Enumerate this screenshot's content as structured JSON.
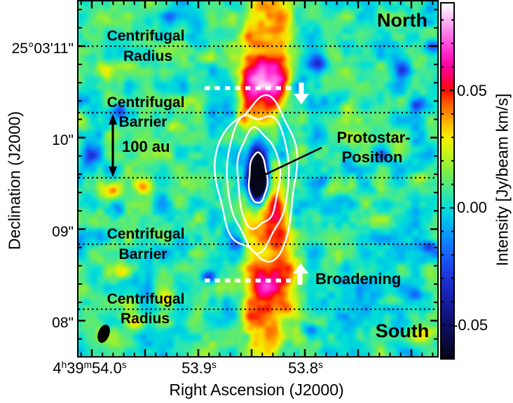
{
  "plot": {
    "north_label": "North",
    "south_label": "South",
    "annotations": {
      "cr_top": {
        "line1": "Centrifugal",
        "line2": "Radius"
      },
      "cb_top": {
        "line1": "Centrifugal",
        "line2": "Barrier"
      },
      "scale_label": "100 au",
      "protostar": {
        "line1": "Protostar-",
        "line2": "Position"
      },
      "cb_bottom": {
        "line1": "Centrifugal",
        "line2": "Barrier"
      },
      "cr_bottom": {
        "line1": "Centrifugal",
        "line2": "Radius"
      },
      "broadening": "Broadening"
    }
  },
  "axes": {
    "x_label": "Right Ascension (J2000)",
    "y_label": "Declination (J2000)",
    "y_tick_labels": [
      "25°03'11\"",
      "10\"",
      "09\"",
      "08\""
    ],
    "x_tick_segments": [
      [
        {
          "t": "4"
        },
        {
          "t": "h",
          "sup": true
        },
        {
          "t": "39"
        },
        {
          "t": "m",
          "sup": true
        },
        {
          "t": "54.0"
        },
        {
          "t": "s",
          "sup": true
        }
      ],
      [
        {
          "t": "53.9"
        },
        {
          "t": "s",
          "sup": true
        }
      ],
      [
        {
          "t": "53.8"
        },
        {
          "t": "s",
          "sup": true
        }
      ]
    ]
  },
  "colorbar": {
    "label": "Intensity [Jy/beam km/s]",
    "tick_labels": [
      "0.05",
      "0.00",
      "-0.05"
    ],
    "colormap": [
      [
        0.087,
        "#ffffff"
      ],
      [
        0.08,
        "#ffb9f3"
      ],
      [
        0.074,
        "#ff78e8"
      ],
      [
        0.066,
        "#ff28cd"
      ],
      [
        0.06,
        "#ff009b"
      ],
      [
        0.055,
        "#ff0055"
      ],
      [
        0.05,
        "#fc0a05"
      ],
      [
        0.045,
        "#ff5500"
      ],
      [
        0.04,
        "#ff8c00"
      ],
      [
        0.035,
        "#ffc300"
      ],
      [
        0.03,
        "#f5ee00"
      ],
      [
        0.024,
        "#cdf314"
      ],
      [
        0.018,
        "#96f037"
      ],
      [
        0.013,
        "#69ec5f"
      ],
      [
        0.008,
        "#46e991"
      ],
      [
        0.004,
        "#23e4b9"
      ],
      [
        0.0,
        "#00ded7"
      ],
      [
        -0.005,
        "#00c3eb"
      ],
      [
        -0.012,
        "#0a91fc"
      ],
      [
        -0.02,
        "#195ff8"
      ],
      [
        -0.03,
        "#1c32d7"
      ],
      [
        -0.04,
        "#161ca0"
      ],
      [
        -0.05,
        "#0e0e64"
      ],
      [
        -0.056,
        "#0a0a42"
      ],
      [
        -0.064,
        "#06061a"
      ]
    ]
  },
  "chart_data": {
    "type": "heatmap",
    "title": "",
    "xlabel": "Right Ascension (J2000)",
    "ylabel": "Declination (J2000)",
    "x_tick_labels": [
      "4h39m54.0s",
      "53.9s",
      "53.8s"
    ],
    "y_tick_labels": [
      "25°03'11\"",
      "10\"",
      "09\"",
      "08\""
    ],
    "colorbar": {
      "label": "Intensity [Jy/beam km/s]",
      "ticks": [
        0.05,
        0.0,
        -0.05
      ],
      "approx_range": [
        -0.064,
        0.087
      ]
    },
    "annotations": [
      "North",
      "South",
      "Centrifugal Radius (north dotted line, Dec ~25°03'11\")",
      "Centrifugal Barrier (north dotted line)",
      "100 au scale double-arrow",
      "Protostar-Position (pointer to map center)",
      "Centrifugal Barrier (south dotted line)",
      "Centrifugal Radius (south dotted line)",
      "Broadening (white arrows on dotted white velocity lines)"
    ],
    "features": {
      "protostar_center_ra_dec": [
        "4h39m53.87s",
        "25°03'10.0\""
      ],
      "dec_marker_lines_arcsec_offsets": [
        "+1.45",
        "+0.73",
        "0 (protostar)",
        "-0.71",
        "-1.43"
      ],
      "map_description": "Noisy cyan/green background with bright red-magenta vertical ridge through center, dark navy negative core at protostar surrounded by 4 white intensity contours; black filled beam ellipse at bottom left."
    }
  }
}
